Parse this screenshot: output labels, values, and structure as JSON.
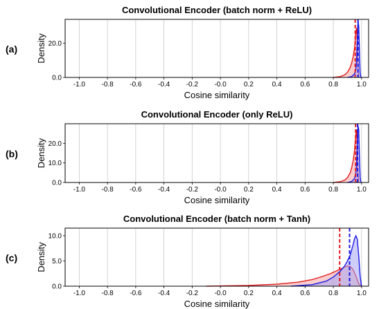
{
  "chart_data": [
    {
      "panel_label": "(a)",
      "type": "area",
      "title": "Convolutional Encoder (batch norm + ReLU)",
      "xlabel": "Cosine similarity",
      "ylabel": "Density",
      "xlim": [
        -1.1,
        1.05
      ],
      "ylim": [
        0,
        34
      ],
      "xticks": [
        "-1.0",
        "-0.8",
        "-0.6",
        "-0.4",
        "-0.2",
        "-0.0",
        "0.2",
        "0.4",
        "0.6",
        "0.8",
        "1.0"
      ],
      "yticks": [
        "0.0",
        "20.0"
      ],
      "ytick_values": [
        0,
        20
      ],
      "grid": "vertical",
      "series": [
        {
          "color": "#e41a1c",
          "fill": "#f4a6a6",
          "x": [
            0.8,
            0.85,
            0.88,
            0.9,
            0.92,
            0.93,
            0.94,
            0.95,
            0.955,
            0.96,
            0.965,
            0.97,
            0.975,
            0.98
          ],
          "y": [
            0,
            0.5,
            1.5,
            3,
            6,
            8.5,
            12,
            17,
            22,
            27,
            29,
            20,
            6,
            0
          ]
        },
        {
          "color": "#1a1ae4",
          "fill": "#a6a6f4",
          "x": [
            0.9,
            0.93,
            0.95,
            0.96,
            0.965,
            0.97,
            0.975,
            0.98,
            0.985,
            0.99,
            0.995
          ],
          "y": [
            0,
            0.5,
            2,
            5,
            10,
            22,
            33,
            30,
            16,
            3,
            0
          ]
        }
      ],
      "vlines": [
        {
          "x": 0.955,
          "color": "#e41a1c",
          "style": "dashed"
        },
        {
          "x": 0.975,
          "color": "#1a1ae4",
          "style": "dashed"
        }
      ]
    },
    {
      "panel_label": "(b)",
      "type": "area",
      "title": "Convolutional Encoder (only ReLU)",
      "xlabel": "Cosine similarity",
      "ylabel": "Density",
      "xlim": [
        -1.1,
        1.05
      ],
      "ylim": [
        0,
        30
      ],
      "xticks": [
        "-1.0",
        "-0.8",
        "-0.6",
        "-0.4",
        "-0.2",
        "-0.0",
        "0.2",
        "0.4",
        "0.6",
        "0.8",
        "1.0"
      ],
      "yticks": [
        "0.0",
        "10.0",
        "20.0"
      ],
      "ytick_values": [
        0,
        10,
        20
      ],
      "grid": "vertical",
      "series": [
        {
          "color": "#e41a1c",
          "fill": "#f4a6a6",
          "x": [
            0.8,
            0.85,
            0.88,
            0.9,
            0.92,
            0.93,
            0.94,
            0.95,
            0.955,
            0.96,
            0.965,
            0.97,
            0.975,
            0.98
          ],
          "y": [
            0,
            0.4,
            1.2,
            2.5,
            5,
            7.5,
            11,
            16,
            21,
            25,
            27,
            18,
            5,
            0
          ]
        },
        {
          "color": "#1a1ae4",
          "fill": "#a6a6f4",
          "x": [
            0.9,
            0.93,
            0.95,
            0.96,
            0.965,
            0.97,
            0.975,
            0.98,
            0.985,
            0.99,
            0.995
          ],
          "y": [
            0,
            0.5,
            2,
            5,
            10,
            20,
            29,
            27,
            14,
            3,
            0
          ]
        }
      ],
      "vlines": [
        {
          "x": 0.958,
          "color": "#e41a1c",
          "style": "dashed"
        },
        {
          "x": 0.972,
          "color": "#1a1ae4",
          "style": "dashed"
        }
      ]
    },
    {
      "panel_label": "(c)",
      "type": "area",
      "title": "Convolutional Encoder (batch norm + Tanh)",
      "xlabel": "Cosine similarity",
      "ylabel": "Density",
      "xlim": [
        -1.1,
        1.05
      ],
      "ylim": [
        0,
        11.5
      ],
      "xticks": [
        "-1.0",
        "-0.8",
        "-0.6",
        "-0.4",
        "-0.2",
        "-0.0",
        "0.2",
        "0.4",
        "0.6",
        "0.8",
        "1.0"
      ],
      "yticks": [
        "0.0",
        "5.0",
        "10.0"
      ],
      "ytick_values": [
        0,
        5,
        10
      ],
      "grid": "vertical",
      "series": [
        {
          "color": "#e41a1c",
          "fill": "#f4a6a6",
          "x": [
            -0.1,
            0.2,
            0.4,
            0.55,
            0.65,
            0.72,
            0.78,
            0.82,
            0.86,
            0.88,
            0.9,
            0.92,
            0.94,
            0.96,
            0.98,
            1.0
          ],
          "y": [
            0,
            0.15,
            0.4,
            0.8,
            1.3,
            1.9,
            2.5,
            3.0,
            3.5,
            3.8,
            4.0,
            3.9,
            3.3,
            2.0,
            0.5,
            0
          ]
        },
        {
          "color": "#1a1ae4",
          "fill": "#a6a6f4",
          "x": [
            0.5,
            0.65,
            0.75,
            0.8,
            0.85,
            0.88,
            0.9,
            0.92,
            0.94,
            0.95,
            0.96,
            0.97,
            0.98,
            0.99,
            1.0
          ],
          "y": [
            0,
            0.3,
            1.0,
            1.8,
            3.0,
            4.0,
            5.0,
            6.2,
            8.2,
            9.4,
            10.0,
            9.3,
            6.0,
            2.0,
            0
          ]
        }
      ],
      "vlines": [
        {
          "x": 0.845,
          "color": "#e41a1c",
          "style": "dashed"
        },
        {
          "x": 0.915,
          "color": "#1a1ae4",
          "style": "dashed"
        }
      ]
    }
  ]
}
